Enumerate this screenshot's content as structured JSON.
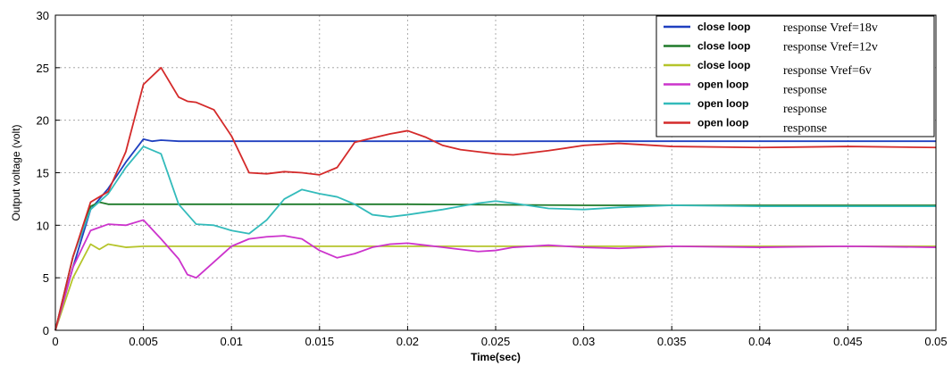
{
  "chart_data": {
    "type": "line",
    "title": "",
    "xlabel": "Time(sec)",
    "ylabel": "Output voltage (volt)",
    "xlim": [
      0,
      0.05
    ],
    "ylim": [
      0,
      30
    ],
    "grid": true,
    "legend_position": "top-right",
    "x_ticks": [
      "0",
      "0.005",
      "0.01",
      "0.015",
      "0.02",
      "0.025",
      "0.03",
      "0.035",
      "0.04",
      "0.045",
      "0.05"
    ],
    "y_ticks": [
      "0",
      "5",
      "10",
      "15",
      "20",
      "25",
      "30"
    ],
    "series": [
      {
        "name": "close loop",
        "name_suffix": "response Vref=18v",
        "color": "#1f3fbf",
        "points": [
          [
            0,
            0
          ],
          [
            0.001,
            6
          ],
          [
            0.002,
            11.5
          ],
          [
            0.003,
            13.5
          ],
          [
            0.004,
            16
          ],
          [
            0.005,
            18.2
          ],
          [
            0.0055,
            18.0
          ],
          [
            0.006,
            18.1
          ],
          [
            0.007,
            18.0
          ],
          [
            0.008,
            18.0
          ],
          [
            0.01,
            18.0
          ],
          [
            0.02,
            18.0
          ],
          [
            0.03,
            18.0
          ],
          [
            0.04,
            18.0
          ],
          [
            0.05,
            18.0
          ]
        ]
      },
      {
        "name": "close loop",
        "name_suffix": "response Vref=12v",
        "color": "#1f7a2a",
        "points": [
          [
            0,
            0
          ],
          [
            0.001,
            7
          ],
          [
            0.002,
            11.8
          ],
          [
            0.0025,
            12.2
          ],
          [
            0.003,
            12.0
          ],
          [
            0.004,
            12.0
          ],
          [
            0.006,
            12.0
          ],
          [
            0.01,
            12.0
          ],
          [
            0.02,
            12.0
          ],
          [
            0.03,
            11.9
          ],
          [
            0.04,
            11.9
          ],
          [
            0.05,
            11.9
          ]
        ]
      },
      {
        "name": "close loop",
        "name_suffix": "response Vref=6v",
        "color": "#b5c42a",
        "points": [
          [
            0,
            0
          ],
          [
            0.001,
            5
          ],
          [
            0.002,
            8.2
          ],
          [
            0.0025,
            7.7
          ],
          [
            0.003,
            8.2
          ],
          [
            0.004,
            7.9
          ],
          [
            0.005,
            8.0
          ],
          [
            0.007,
            8.0
          ],
          [
            0.01,
            8.0
          ],
          [
            0.02,
            8.0
          ],
          [
            0.03,
            8.0
          ],
          [
            0.04,
            8.0
          ],
          [
            0.05,
            8.0
          ]
        ]
      },
      {
        "name": "open loop",
        "name_suffix": "response",
        "color": "#cc33cc",
        "points": [
          [
            0,
            0
          ],
          [
            0.001,
            6
          ],
          [
            0.002,
            9.5
          ],
          [
            0.003,
            10.1
          ],
          [
            0.004,
            10.0
          ],
          [
            0.005,
            10.5
          ],
          [
            0.006,
            8.7
          ],
          [
            0.007,
            6.8
          ],
          [
            0.0075,
            5.3
          ],
          [
            0.008,
            5.0
          ],
          [
            0.009,
            6.5
          ],
          [
            0.01,
            8.0
          ],
          [
            0.011,
            8.7
          ],
          [
            0.012,
            8.9
          ],
          [
            0.013,
            9.0
          ],
          [
            0.014,
            8.7
          ],
          [
            0.015,
            7.6
          ],
          [
            0.016,
            6.9
          ],
          [
            0.017,
            7.3
          ],
          [
            0.018,
            7.9
          ],
          [
            0.019,
            8.2
          ],
          [
            0.02,
            8.3
          ],
          [
            0.021,
            8.1
          ],
          [
            0.022,
            7.9
          ],
          [
            0.023,
            7.7
          ],
          [
            0.024,
            7.5
          ],
          [
            0.025,
            7.6
          ],
          [
            0.026,
            7.9
          ],
          [
            0.028,
            8.1
          ],
          [
            0.03,
            7.9
          ],
          [
            0.032,
            7.8
          ],
          [
            0.035,
            8.0
          ],
          [
            0.04,
            7.9
          ],
          [
            0.045,
            8.0
          ],
          [
            0.05,
            7.9
          ]
        ]
      },
      {
        "name": "open loop",
        "name_suffix": "response",
        "color": "#33bbbb",
        "points": [
          [
            0,
            0
          ],
          [
            0.001,
            7
          ],
          [
            0.002,
            11.5
          ],
          [
            0.003,
            13
          ],
          [
            0.004,
            15.5
          ],
          [
            0.005,
            17.5
          ],
          [
            0.006,
            16.8
          ],
          [
            0.007,
            12.0
          ],
          [
            0.008,
            10.1
          ],
          [
            0.009,
            10.0
          ],
          [
            0.01,
            9.5
          ],
          [
            0.011,
            9.2
          ],
          [
            0.012,
            10.5
          ],
          [
            0.013,
            12.5
          ],
          [
            0.014,
            13.4
          ],
          [
            0.015,
            13.0
          ],
          [
            0.016,
            12.7
          ],
          [
            0.017,
            12.0
          ],
          [
            0.018,
            11.0
          ],
          [
            0.019,
            10.8
          ],
          [
            0.02,
            11.0
          ],
          [
            0.022,
            11.5
          ],
          [
            0.024,
            12.1
          ],
          [
            0.025,
            12.3
          ],
          [
            0.026,
            12.1
          ],
          [
            0.028,
            11.6
          ],
          [
            0.03,
            11.5
          ],
          [
            0.032,
            11.7
          ],
          [
            0.035,
            11.9
          ],
          [
            0.04,
            11.8
          ],
          [
            0.045,
            11.8
          ],
          [
            0.05,
            11.8
          ]
        ]
      },
      {
        "name": "open loop",
        "name_suffix": "response",
        "color": "#d42a2a",
        "points": [
          [
            0,
            0
          ],
          [
            0.001,
            7
          ],
          [
            0.002,
            12.2
          ],
          [
            0.003,
            13.2
          ],
          [
            0.004,
            17
          ],
          [
            0.005,
            23.4
          ],
          [
            0.006,
            25.0
          ],
          [
            0.007,
            22.2
          ],
          [
            0.0075,
            21.8
          ],
          [
            0.008,
            21.7
          ],
          [
            0.009,
            21.0
          ],
          [
            0.01,
            18.5
          ],
          [
            0.011,
            15.0
          ],
          [
            0.012,
            14.9
          ],
          [
            0.013,
            15.1
          ],
          [
            0.014,
            15.0
          ],
          [
            0.015,
            14.8
          ],
          [
            0.016,
            15.5
          ],
          [
            0.017,
            17.9
          ],
          [
            0.018,
            18.3
          ],
          [
            0.019,
            18.7
          ],
          [
            0.02,
            19.0
          ],
          [
            0.021,
            18.4
          ],
          [
            0.022,
            17.6
          ],
          [
            0.023,
            17.2
          ],
          [
            0.024,
            17.0
          ],
          [
            0.025,
            16.8
          ],
          [
            0.026,
            16.7
          ],
          [
            0.027,
            16.9
          ],
          [
            0.028,
            17.1
          ],
          [
            0.03,
            17.6
          ],
          [
            0.032,
            17.8
          ],
          [
            0.035,
            17.5
          ],
          [
            0.04,
            17.4
          ],
          [
            0.045,
            17.5
          ],
          [
            0.05,
            17.4
          ]
        ]
      }
    ]
  }
}
